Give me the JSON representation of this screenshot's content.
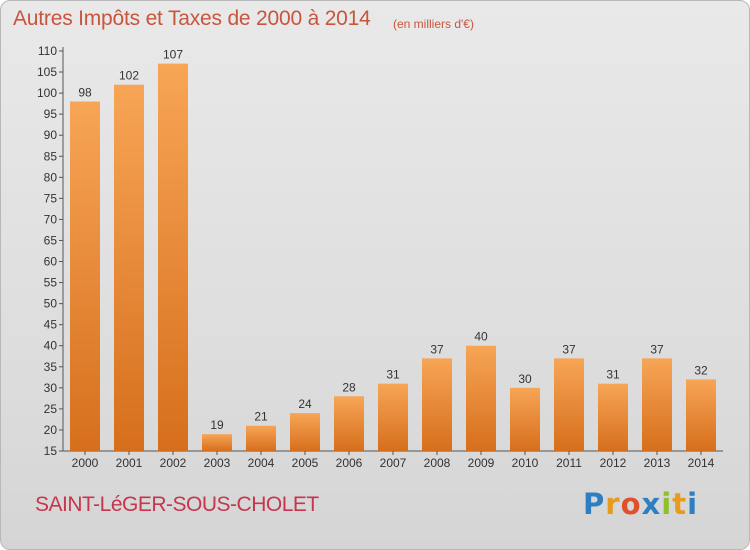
{
  "title": "Autres Impôts et Taxes de 2000 à 2014",
  "subtitle": "(en milliers d'€)",
  "location": "SAINT-LéGER-SOUS-CHOLET",
  "logo": {
    "text": "Proxiti",
    "letters": [
      "P",
      "r",
      "o",
      "x",
      "i",
      "t",
      "i"
    ],
    "letter_colors": [
      "#2e7fc1",
      "#e89a1c",
      "#e0502a",
      "#2e7fc1",
      "#8fbf2a",
      "#e89a1c",
      "#2e7fc1"
    ]
  },
  "colors": {
    "bar_light": "#f7a556",
    "bar_dark": "#d66f1c",
    "title": "#c8553d",
    "location": "#c8354d"
  },
  "chart_data": {
    "type": "bar",
    "title": "Autres Impôts et Taxes de 2000 à 2014",
    "subtitle": "(en milliers d'€)",
    "categories": [
      "2000",
      "2001",
      "2002",
      "2003",
      "2004",
      "2005",
      "2006",
      "2007",
      "2008",
      "2009",
      "2010",
      "2011",
      "2012",
      "2013",
      "2014"
    ],
    "values": [
      98,
      102,
      107,
      19,
      21,
      24,
      28,
      31,
      37,
      40,
      30,
      37,
      31,
      37,
      32
    ],
    "ylim": [
      15,
      110
    ],
    "yticks": [
      15,
      20,
      25,
      30,
      35,
      40,
      45,
      50,
      55,
      60,
      65,
      70,
      75,
      80,
      85,
      90,
      95,
      100,
      105,
      110
    ],
    "grid": false,
    "xlabel": "",
    "ylabel": ""
  }
}
